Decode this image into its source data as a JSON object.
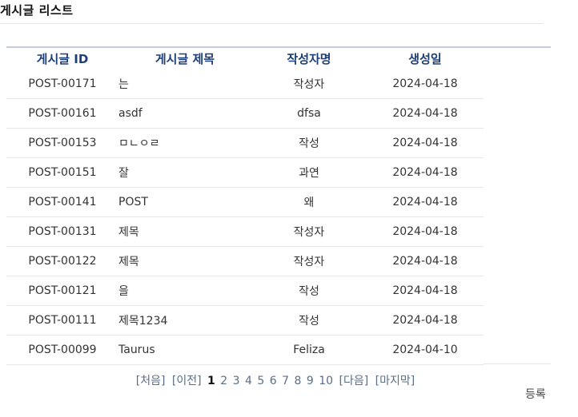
{
  "page": {
    "title": "게시글 리스트"
  },
  "table": {
    "headers": {
      "id": "게시글 ID",
      "title": "게시글 제목",
      "author": "작성자명",
      "date": "생성일"
    },
    "rows": [
      {
        "id": "POST-00171",
        "title": "는",
        "author": "작성자",
        "date": "2024-04-18"
      },
      {
        "id": "POST-00161",
        "title": "asdf",
        "author": "dfsa",
        "date": "2024-04-18"
      },
      {
        "id": "POST-00153",
        "title": "ㅁㄴㅇㄹ",
        "author": "작성",
        "date": "2024-04-18"
      },
      {
        "id": "POST-00151",
        "title": "잘",
        "author": "과연",
        "date": "2024-04-18"
      },
      {
        "id": "POST-00141",
        "title": "POST",
        "author": "왜",
        "date": "2024-04-18"
      },
      {
        "id": "POST-00131",
        "title": "제목",
        "author": "작성자",
        "date": "2024-04-18"
      },
      {
        "id": "POST-00122",
        "title": "제목",
        "author": "작성자",
        "date": "2024-04-18"
      },
      {
        "id": "POST-00121",
        "title": "을",
        "author": "작성",
        "date": "2024-04-18"
      },
      {
        "id": "POST-00111",
        "title": "제목1234",
        "author": "작성",
        "date": "2024-04-18"
      },
      {
        "id": "POST-00099",
        "title": "Taurus",
        "author": "Feliza",
        "date": "2024-04-10"
      }
    ]
  },
  "pagination": {
    "first": "[처음]",
    "prev": "[이전]",
    "pages": [
      "1",
      "2",
      "3",
      "4",
      "5",
      "6",
      "7",
      "8",
      "9",
      "10"
    ],
    "current": "1",
    "next": "[다음]",
    "last": "[마지막]"
  },
  "actions": {
    "register": "등록"
  }
}
